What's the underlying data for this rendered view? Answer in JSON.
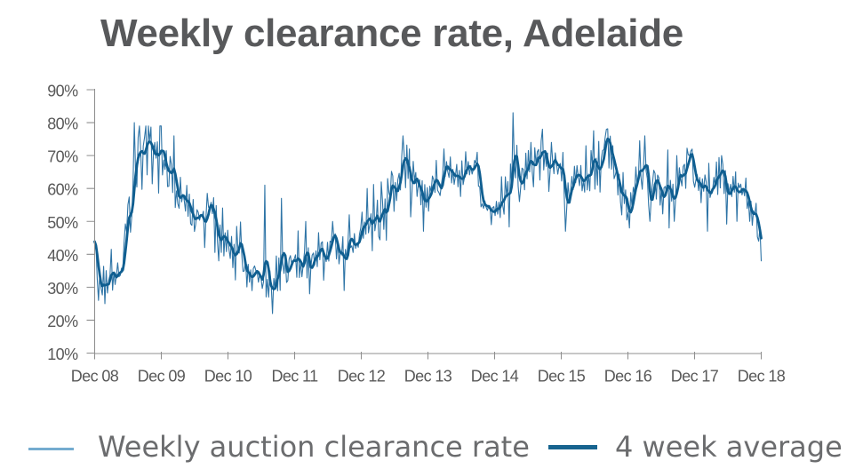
{
  "title": "Weekly clearance rate, Adelaide",
  "chart_data": {
    "type": "line",
    "title": "Weekly clearance rate, Adelaide",
    "x_axis": {
      "tick_labels": [
        "Dec 08",
        "Dec 09",
        "Dec 10",
        "Dec 11",
        "Dec 12",
        "Dec 13",
        "Dec 14",
        "Dec 15",
        "Dec 16",
        "Dec 17",
        "Dec 18"
      ],
      "unit": "week"
    },
    "y_axis": {
      "tick_labels": [
        "10%",
        "20%",
        "30%",
        "40%",
        "50%",
        "60%",
        "70%",
        "80%",
        "90%"
      ],
      "min": 10,
      "max": 90,
      "unit": "%"
    },
    "grid": false,
    "legend_position": "bottom",
    "weeks_total": 521,
    "series": [
      {
        "name": "Weekly auction clearance rate",
        "color": "#2E74A6",
        "stroke_width": 1.1,
        "generation": {
          "weekly_anchors": [
            [
              0,
              40
            ],
            [
              2,
              33
            ],
            [
              5,
              30
            ],
            [
              9,
              31
            ],
            [
              13,
              32
            ],
            [
              17,
              34
            ],
            [
              20,
              38
            ],
            [
              23,
              43
            ],
            [
              26,
              48
            ],
            [
              28,
              52
            ],
            [
              30,
              57
            ],
            [
              32,
              62
            ],
            [
              34,
              66
            ],
            [
              36,
              69
            ],
            [
              39,
              70.5
            ],
            [
              42,
              70.5
            ],
            [
              45,
              69.5
            ],
            [
              48,
              70
            ],
            [
              52,
              70
            ],
            [
              55,
              68
            ],
            [
              58,
              64
            ],
            [
              62,
              60
            ],
            [
              66,
              57
            ],
            [
              70,
              55
            ],
            [
              73,
              57
            ],
            [
              76,
              54
            ],
            [
              80,
              51
            ],
            [
              84,
              52
            ],
            [
              88,
              54
            ],
            [
              92,
              54
            ],
            [
              96,
              48
            ],
            [
              100,
              44
            ],
            [
              104,
              43
            ],
            [
              107,
              40
            ],
            [
              110,
              42
            ],
            [
              113,
              45
            ],
            [
              116,
              41
            ],
            [
              119,
              37
            ],
            [
              122,
              34
            ],
            [
              126,
              33
            ],
            [
              130,
              32
            ],
            [
              134,
              31
            ],
            [
              137,
              30
            ],
            [
              140,
              32
            ],
            [
              144,
              35
            ],
            [
              147,
              37
            ],
            [
              150,
              36
            ],
            [
              153,
              37
            ],
            [
              156,
              36
            ],
            [
              160,
              37
            ],
            [
              164,
              39
            ],
            [
              168,
              37
            ],
            [
              172,
              38
            ],
            [
              176,
              40
            ],
            [
              180,
              38
            ],
            [
              184,
              39
            ],
            [
              188,
              41
            ],
            [
              192,
              40
            ],
            [
              196,
              41
            ],
            [
              200,
              42
            ],
            [
              204,
              43
            ],
            [
              208,
              45
            ],
            [
              212,
              47
            ],
            [
              216,
              50
            ],
            [
              220,
              52
            ],
            [
              224,
              50
            ],
            [
              228,
              54
            ],
            [
              232,
              59
            ],
            [
              236,
              63
            ],
            [
              240,
              65
            ],
            [
              244,
              66
            ],
            [
              248,
              62
            ],
            [
              252,
              64
            ],
            [
              255,
              60
            ],
            [
              258,
              57
            ],
            [
              261,
              59
            ],
            [
              264,
              62
            ],
            [
              267,
              64
            ],
            [
              270,
              65
            ],
            [
              274,
              64
            ],
            [
              278,
              66
            ],
            [
              282,
              63
            ],
            [
              286,
              65
            ],
            [
              290,
              67
            ],
            [
              294,
              66
            ],
            [
              298,
              66
            ],
            [
              300,
              62
            ],
            [
              302,
              56
            ],
            [
              305,
              54
            ],
            [
              309,
              54
            ],
            [
              313,
              54
            ],
            [
              317,
              54.5
            ],
            [
              320,
              56
            ],
            [
              323,
              60
            ],
            [
              326,
              64
            ],
            [
              330,
              66
            ],
            [
              334,
              64
            ],
            [
              338,
              66
            ],
            [
              342,
              65
            ],
            [
              346,
              67
            ],
            [
              350,
              69
            ],
            [
              353,
              67
            ],
            [
              356,
              64
            ],
            [
              360,
              66
            ],
            [
              364,
              63
            ],
            [
              368,
              58
            ],
            [
              372,
              61
            ],
            [
              376,
              64
            ],
            [
              380,
              61
            ],
            [
              384,
              63
            ],
            [
              388,
              65
            ],
            [
              392,
              67
            ],
            [
              396,
              70
            ],
            [
              400,
              73
            ],
            [
              404,
              69
            ],
            [
              408,
              64
            ],
            [
              412,
              60
            ],
            [
              416,
              58
            ],
            [
              419,
              56
            ],
            [
              422,
              62
            ],
            [
              425,
              65
            ],
            [
              428,
              64
            ],
            [
              431,
              62
            ],
            [
              434,
              60
            ],
            [
              438,
              62
            ],
            [
              442,
              59
            ],
            [
              446,
              58
            ],
            [
              450,
              61
            ],
            [
              454,
              60
            ],
            [
              458,
              63
            ],
            [
              462,
              66
            ],
            [
              466,
              68
            ],
            [
              468,
              66
            ],
            [
              471,
              63
            ],
            [
              474,
              61
            ],
            [
              477,
              59
            ],
            [
              480,
              62
            ],
            [
              483,
              61
            ],
            [
              486,
              62
            ],
            [
              489,
              63
            ],
            [
              492,
              61
            ],
            [
              495,
              61
            ],
            [
              498,
              61
            ],
            [
              501,
              61
            ],
            [
              504,
              60
            ],
            [
              507,
              59
            ],
            [
              510,
              58
            ],
            [
              513,
              54
            ],
            [
              516,
              50
            ],
            [
              519,
              48
            ],
            [
              521,
              47
            ]
          ],
          "noise_amplitude_anchors": [
            [
              0,
              7
            ],
            [
              8,
              6
            ],
            [
              16,
              5
            ],
            [
              24,
              7
            ],
            [
              30,
              9
            ],
            [
              36,
              10
            ],
            [
              44,
              9
            ],
            [
              52,
              8
            ],
            [
              60,
              8
            ],
            [
              68,
              7
            ],
            [
              76,
              6
            ],
            [
              84,
              6
            ],
            [
              92,
              5
            ],
            [
              100,
              5
            ],
            [
              108,
              6
            ],
            [
              116,
              5
            ],
            [
              124,
              5
            ],
            [
              132,
              5
            ],
            [
              140,
              6
            ],
            [
              148,
              6
            ],
            [
              156,
              5
            ],
            [
              164,
              5
            ],
            [
              172,
              5
            ],
            [
              180,
              5
            ],
            [
              188,
              6
            ],
            [
              196,
              6
            ],
            [
              204,
              6
            ],
            [
              212,
              6
            ],
            [
              220,
              7
            ],
            [
              228,
              7
            ],
            [
              236,
              8
            ],
            [
              244,
              8
            ],
            [
              252,
              5
            ],
            [
              260,
              5
            ],
            [
              268,
              5
            ],
            [
              276,
              5
            ],
            [
              284,
              5
            ],
            [
              292,
              5
            ],
            [
              300,
              2.5
            ],
            [
              308,
              2.5
            ],
            [
              316,
              3.5
            ],
            [
              324,
              8
            ],
            [
              332,
              7
            ],
            [
              340,
              7
            ],
            [
              348,
              8
            ],
            [
              356,
              7
            ],
            [
              364,
              5
            ],
            [
              372,
              5
            ],
            [
              380,
              6
            ],
            [
              388,
              7
            ],
            [
              396,
              7
            ],
            [
              404,
              6
            ],
            [
              412,
              6
            ],
            [
              420,
              6
            ],
            [
              428,
              7
            ],
            [
              436,
              6
            ],
            [
              444,
              6
            ],
            [
              452,
              6
            ],
            [
              460,
              5
            ],
            [
              468,
              5
            ],
            [
              476,
              6
            ],
            [
              484,
              7
            ],
            [
              492,
              6
            ],
            [
              500,
              5
            ],
            [
              508,
              5
            ],
            [
              516,
              5
            ],
            [
              521,
              5
            ]
          ],
          "heavy_tail_probability": 0.22,
          "heavy_tail_factor": 2.1,
          "zigzag_probability": 0.5,
          "clamp": [
            25,
            79
          ],
          "extreme_weeks": [
            [
              0,
              44
            ],
            [
              3,
              26
            ],
            [
              31,
              80
            ],
            [
              42,
              79
            ],
            [
              47,
              74
            ],
            [
              62,
              76
            ],
            [
              97,
              38
            ],
            [
              133,
              61
            ],
            [
              136,
              27
            ],
            [
              139,
              22
            ],
            [
              146,
              57
            ],
            [
              165,
              50
            ],
            [
              168,
              28
            ],
            [
              186,
              50
            ],
            [
              195,
              29
            ],
            [
              199,
              52
            ],
            [
              213,
              60
            ],
            [
              224,
              62
            ],
            [
              229,
              63
            ],
            [
              241,
              76
            ],
            [
              246,
              72
            ],
            [
              257,
              47
            ],
            [
              273,
              72
            ],
            [
              299,
              71
            ],
            [
              310,
              49
            ],
            [
              327,
              83
            ],
            [
              332,
              56
            ],
            [
              341,
              74
            ],
            [
              350,
              78
            ],
            [
              357,
              74
            ],
            [
              368,
              47
            ],
            [
              384,
              73
            ],
            [
              400,
              78
            ],
            [
              405,
              73
            ],
            [
              418,
              48
            ],
            [
              430,
              76
            ],
            [
              434,
              50
            ],
            [
              453,
              50
            ],
            [
              455,
              70
            ],
            [
              465,
              70
            ],
            [
              479,
              47
            ],
            [
              490,
              70
            ],
            [
              502,
              50
            ],
            [
              512,
              50
            ],
            [
              516,
              52
            ],
            [
              519,
              44
            ],
            [
              520,
              48
            ],
            [
              521,
              38
            ]
          ],
          "noise_seed": 7
        }
      },
      {
        "name": "4 week average",
        "color": "#0F5E90",
        "stroke_width": 2.8,
        "derived": "4-week trailing moving average of weekly series"
      }
    ]
  },
  "legend": {
    "items": [
      {
        "label": "Weekly auction clearance rate",
        "color": "#74ACCF",
        "thickness": 2.6
      },
      {
        "label": "4 week average",
        "color": "#17648F",
        "thickness": 5
      }
    ]
  },
  "axis_color": "#8F8F8F",
  "label_color": "#595959"
}
